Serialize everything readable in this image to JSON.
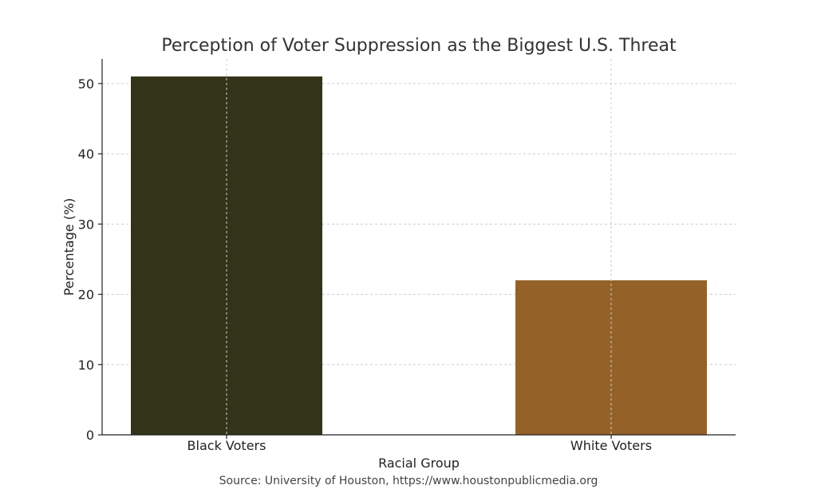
{
  "chart_data": {
    "type": "bar",
    "title": "Perception of Voter Suppression as the Biggest U.S. Threat",
    "xlabel": "Racial Group",
    "ylabel": "Percentage (%)",
    "categories": [
      "Black Voters",
      "White Voters"
    ],
    "values": [
      51,
      22
    ],
    "colors": [
      "#333319",
      "#946228"
    ],
    "ylim": [
      0,
      53.5
    ],
    "yticks": [
      0,
      10,
      20,
      30,
      40,
      50
    ],
    "grid": true,
    "source": "Source: University of Houston, https://www.houstonpublicmedia.org"
  }
}
